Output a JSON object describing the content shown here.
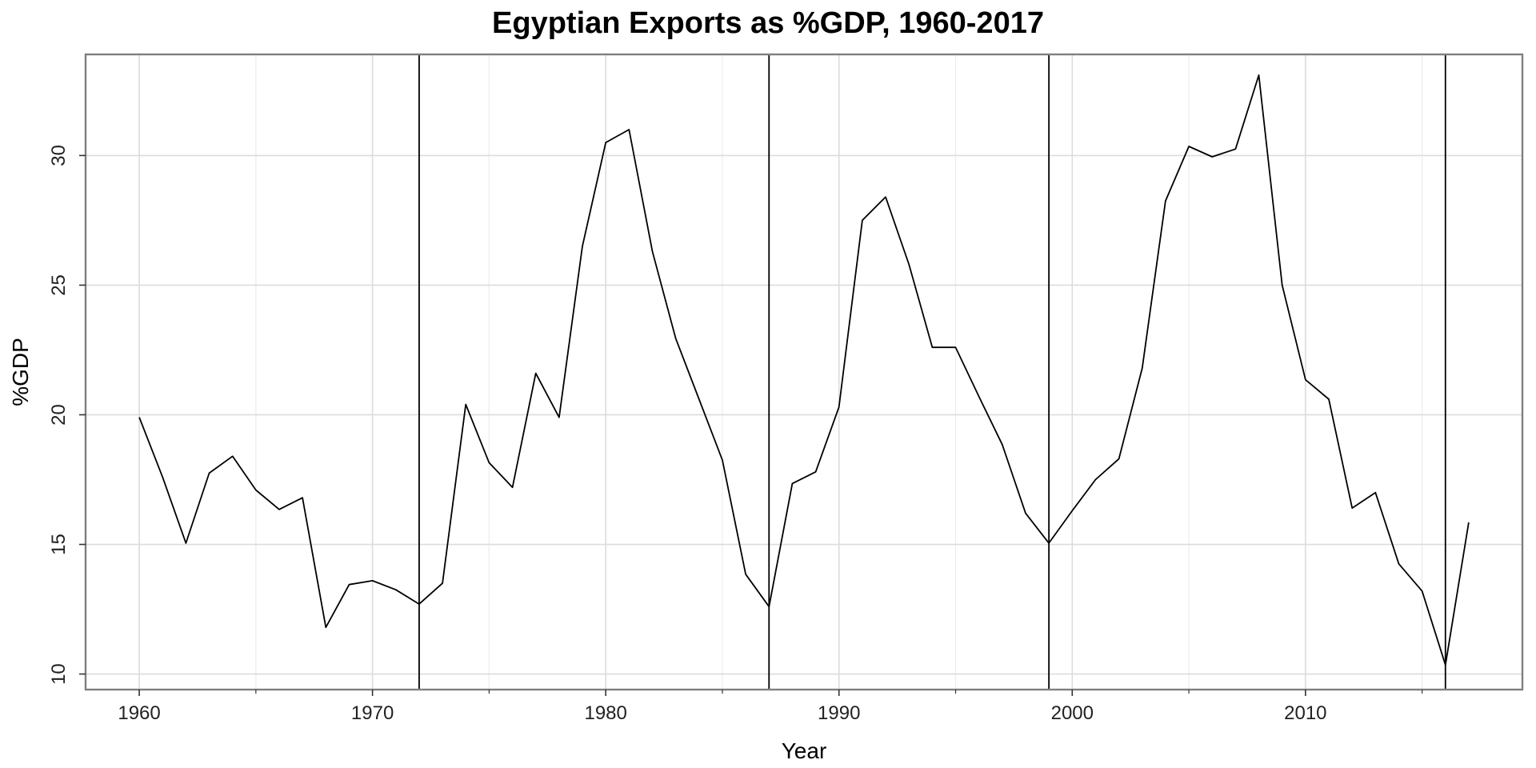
{
  "chart_data": {
    "type": "line",
    "title": "Egyptian Exports as %GDP, 1960-2017",
    "xlabel": "Year",
    "ylabel": "%GDP",
    "xlim": [
      1957.7,
      2019.3
    ],
    "ylim": [
      9.4,
      33.9
    ],
    "x_ticks": [
      1960,
      1970,
      1980,
      1990,
      2000,
      2010
    ],
    "x_minor_ticks": [
      1965,
      1975,
      1985,
      1995,
      2005,
      2015
    ],
    "y_ticks": [
      10,
      15,
      20,
      25,
      30
    ],
    "grid": true,
    "vlines": [
      1972,
      1987,
      1999,
      2016
    ],
    "series": [
      {
        "x": [
          1960,
          1961,
          1962,
          1963,
          1964,
          1965,
          1966,
          1967,
          1968,
          1969,
          1970,
          1971,
          1972,
          1973,
          1974,
          1975,
          1976,
          1977,
          1978,
          1979,
          1980,
          1981,
          1982,
          1983,
          1984,
          1985,
          1986,
          1987,
          1988,
          1989,
          1990,
          1991,
          1992,
          1993,
          1994,
          1995,
          1996,
          1997,
          1998,
          1999,
          2000,
          2001,
          2002,
          2003,
          2004,
          2005,
          2006,
          2007,
          2008,
          2009,
          2010,
          2011,
          2012,
          2013,
          2014,
          2015,
          2016,
          2017
        ],
        "values": [
          19.9,
          17.6,
          15.05,
          17.75,
          18.4,
          17.1,
          16.35,
          16.8,
          11.8,
          13.45,
          13.6,
          13.25,
          12.7,
          13.5,
          20.4,
          18.15,
          17.2,
          21.6,
          19.9,
          26.5,
          30.5,
          31.0,
          26.3,
          22.95,
          20.6,
          18.25,
          13.85,
          12.6,
          17.35,
          17.8,
          20.3,
          27.5,
          28.4,
          25.8,
          22.6,
          22.6,
          20.7,
          18.85,
          16.2,
          15.05,
          16.3,
          17.5,
          18.3,
          21.8,
          28.25,
          30.35,
          29.95,
          30.25,
          33.1,
          25.0,
          21.35,
          20.6,
          16.4,
          17.0,
          14.25,
          13.2,
          10.35,
          15.85
        ]
      }
    ]
  }
}
